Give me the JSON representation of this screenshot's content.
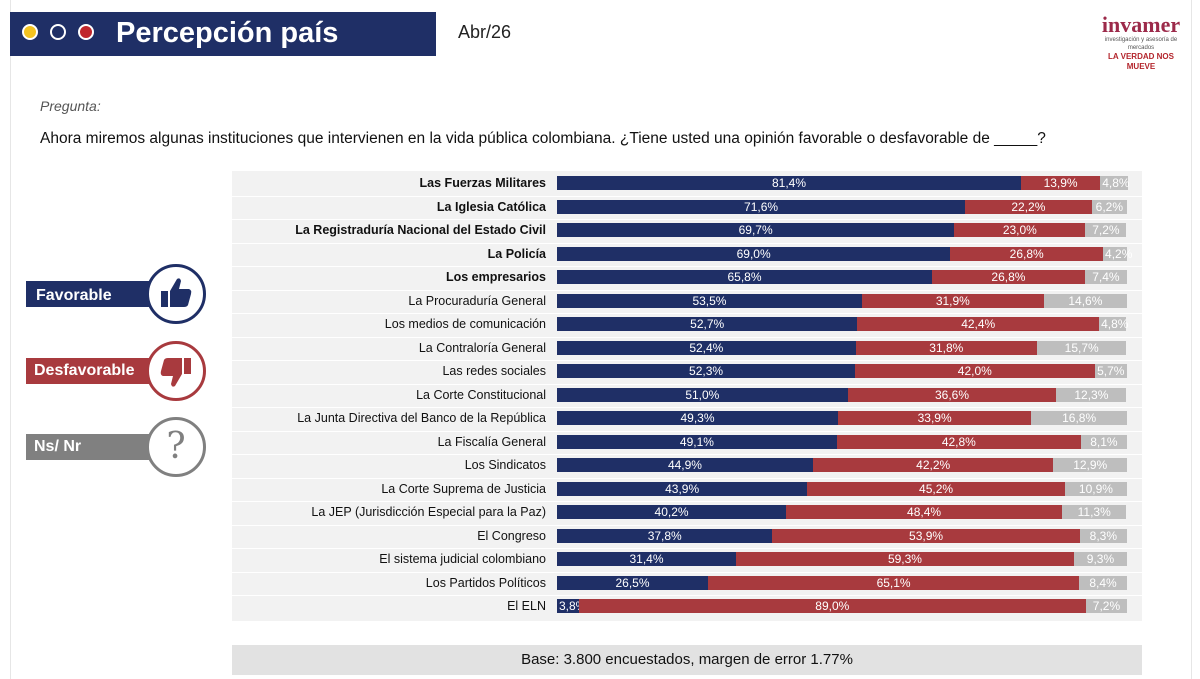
{
  "header": {
    "title": "Percepción país",
    "date": "Abr/26",
    "logo": {
      "name": "invamer",
      "subtitle": "investigación y asesoría de mercados",
      "tagline": "LA VERDAD NOS MUEVE"
    }
  },
  "question": {
    "label": "Pregunta:",
    "text": "Ahora miremos algunas instituciones que intervienen en la vida pública colombiana. ¿Tiene usted una opinión favorable o desfavorable de _____?"
  },
  "legend": {
    "favorable": "Favorable",
    "desfavorable": "Desfavorable",
    "nsnr": "Ns/ Nr",
    "nsnr_symbol": "?"
  },
  "colors": {
    "favorable": "#1f2f66",
    "desfavorable": "#a83a3e",
    "nsnr": "#bebebe"
  },
  "footer": "Base: 3.800 encuestados, margen de error 1.77%",
  "chart_data": {
    "type": "bar",
    "orientation": "horizontal",
    "stacked": true,
    "xlim": [
      0,
      100
    ],
    "categories": [
      "Las Fuerzas Militares",
      "La Iglesia Católica",
      "La Registraduría Nacional del Estado Civil",
      "La Policía",
      "Los empresarios",
      "La Procuraduría General",
      "Los medios de comunicación",
      "La Contraloría General",
      "Las redes sociales",
      "La Corte Constitucional",
      "La Junta Directiva del Banco de la República",
      "La Fiscalía General",
      "Los Sindicatos",
      "La Corte Suprema de Justicia",
      "La JEP (Jurisdicción Especial para la Paz)",
      "El Congreso",
      "El sistema judicial colombiano",
      "Los Partidos Políticos",
      "El ELN"
    ],
    "bold_categories": [
      0,
      1,
      2,
      3,
      4
    ],
    "series": [
      {
        "name": "Favorable",
        "values": [
          81.4,
          71.6,
          69.7,
          69.0,
          65.8,
          53.5,
          52.7,
          52.4,
          52.3,
          51.0,
          49.3,
          49.1,
          44.9,
          43.9,
          40.2,
          37.8,
          31.4,
          26.5,
          3.8
        ]
      },
      {
        "name": "Desfavorable",
        "values": [
          13.9,
          22.2,
          23.0,
          26.8,
          26.8,
          31.9,
          42.4,
          31.8,
          42.0,
          36.6,
          33.9,
          42.8,
          42.2,
          45.2,
          48.4,
          53.9,
          59.3,
          65.1,
          89.0
        ]
      },
      {
        "name": "Ns/ Nr",
        "values": [
          4.8,
          6.2,
          7.2,
          4.2,
          7.4,
          14.6,
          4.8,
          15.7,
          5.7,
          12.3,
          16.8,
          8.1,
          12.9,
          10.9,
          11.3,
          8.3,
          9.3,
          8.4,
          7.2
        ]
      }
    ],
    "labels": [
      [
        "81,4%",
        "13,9%",
        "4,8%"
      ],
      [
        "71,6%",
        "22,2%",
        "6,2%"
      ],
      [
        "69,7%",
        "23,0%",
        "7,2%"
      ],
      [
        "69,0%",
        "26,8%",
        "4,2%"
      ],
      [
        "65,8%",
        "26,8%",
        "7,4%"
      ],
      [
        "53,5%",
        "31,9%",
        "14,6%"
      ],
      [
        "52,7%",
        "42,4%",
        "4,8%"
      ],
      [
        "52,4%",
        "31,8%",
        "15,7%"
      ],
      [
        "52,3%",
        "42,0%",
        "5,7%"
      ],
      [
        "51,0%",
        "36,6%",
        "12,3%"
      ],
      [
        "49,3%",
        "33,9%",
        "16,8%"
      ],
      [
        "49,1%",
        "42,8%",
        "8,1%"
      ],
      [
        "44,9%",
        "42,2%",
        "12,9%"
      ],
      [
        "43,9%",
        "45,2%",
        "10,9%"
      ],
      [
        "40,2%",
        "48,4%",
        "11,3%"
      ],
      [
        "37,8%",
        "53,9%",
        "8,3%"
      ],
      [
        "31,4%",
        "59,3%",
        "9,3%"
      ],
      [
        "26,5%",
        "65,1%",
        "8,4%"
      ],
      [
        "3,8%",
        "89,0%",
        "7,2%"
      ]
    ]
  }
}
